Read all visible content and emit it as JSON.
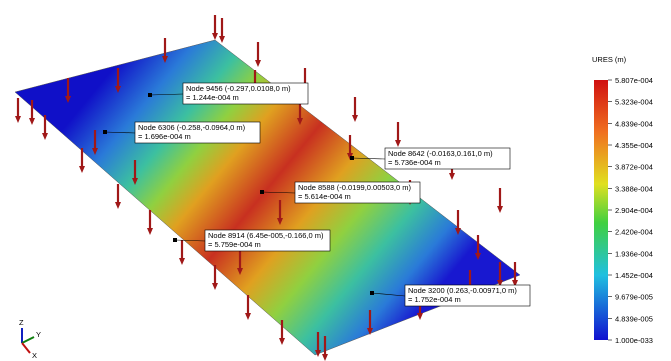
{
  "legend": {
    "title": "URES (m)",
    "ticks": [
      "5.807e-004",
      "5.323e-004",
      "4.839e-004",
      "4.355e-004",
      "3.872e-004",
      "3.388e-004",
      "2.904e-004",
      "2.420e-004",
      "1.936e-004",
      "1.452e-004",
      "9.679e-005",
      "4.839e-005",
      "1.000e-033"
    ]
  },
  "probes": [
    {
      "node": "Node 9456 (-0.297,0.0108,0 m)",
      "result": "= 1.244e-004 m"
    },
    {
      "node": "Node 6306 (-0.258,-0.0964,0 m)",
      "result": "= 1.696e-004 m"
    },
    {
      "node": "Node 8642 (-0.0163,0.161,0 m)",
      "result": "= 5.736e-004 m"
    },
    {
      "node": "Node 8588 (-0.0199,0.00503,0 m)",
      "result": "= 5.614e-004 m"
    },
    {
      "node": "Node 8914 (6.45e-005,-0.166,0 m)",
      "result": "= 5.759e-004 m"
    },
    {
      "node": "Node 3200 (0.263,-0.00971,0 m)",
      "result": "= 1.752e-004 m"
    }
  ],
  "triad": {
    "z": "Z",
    "y": "Y",
    "x": "X"
  }
}
